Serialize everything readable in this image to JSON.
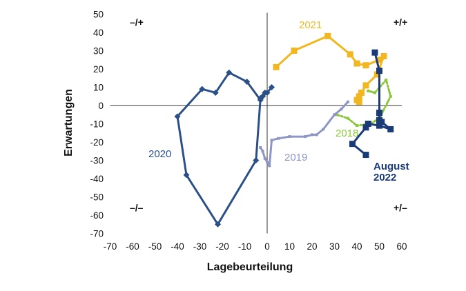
{
  "chart_data": {
    "type": "line",
    "xlabel": "Lagebeurteilung",
    "ylabel": "Erwartungen",
    "xlim": [
      -70,
      60
    ],
    "ylim": [
      -70,
      50
    ],
    "xticks": [
      -70,
      -60,
      -50,
      -40,
      -30,
      -20,
      -10,
      0,
      10,
      20,
      30,
      40,
      50,
      60
    ],
    "yticks": [
      -70,
      -60,
      -50,
      -40,
      -30,
      -20,
      -10,
      0,
      10,
      20,
      30,
      40,
      50
    ],
    "quadrants": {
      "top_left": "–/+",
      "top_right": "+/+",
      "bottom_left": "–/–",
      "bottom_right": "+/–"
    },
    "series": [
      {
        "name": "2018",
        "label": "2018",
        "color": "#8dc63f",
        "line_style": "dashdot",
        "points": [
          [
            45,
            8
          ],
          [
            48,
            7
          ],
          [
            53,
            14
          ],
          [
            55,
            5
          ],
          [
            50,
            -7
          ],
          [
            46,
            -10
          ],
          [
            40,
            -11
          ],
          [
            36,
            -7
          ],
          [
            31,
            -5
          ]
        ]
      },
      {
        "name": "2019",
        "label": "2019",
        "color": "#8e96c3",
        "line_style": "solid",
        "points": [
          [
            36,
            2
          ],
          [
            33,
            -2
          ],
          [
            30,
            -5
          ],
          [
            25,
            -13
          ],
          [
            22,
            -16
          ],
          [
            20,
            -16
          ],
          [
            17,
            -17
          ],
          [
            10,
            -17
          ],
          [
            5,
            -18
          ],
          [
            2,
            -19
          ],
          [
            1,
            -33
          ],
          [
            0,
            -31
          ],
          [
            -1,
            -29
          ],
          [
            -2,
            -25
          ],
          [
            -3,
            -23
          ]
        ]
      },
      {
        "name": "2020",
        "label": "2020",
        "color": "#2b4f87",
        "line_style": "solid",
        "points": [
          [
            2,
            10
          ],
          [
            0,
            7
          ],
          [
            -2,
            5
          ],
          [
            -3,
            3
          ],
          [
            -9,
            13
          ],
          [
            -17,
            18
          ],
          [
            -23,
            7
          ],
          [
            -29,
            9
          ],
          [
            -40,
            -6
          ],
          [
            -36,
            -38
          ],
          [
            -22,
            -65
          ],
          [
            -5,
            -30
          ],
          [
            -3,
            4
          ],
          [
            -1,
            7
          ]
        ]
      },
      {
        "name": "2021",
        "label": "2021",
        "color": "#f2b71e",
        "line_style": "solid",
        "points": [
          [
            4,
            21
          ],
          [
            12,
            30
          ],
          [
            27,
            38
          ],
          [
            37,
            28
          ],
          [
            40,
            23
          ],
          [
            44,
            22
          ],
          [
            50,
            25
          ],
          [
            52,
            27
          ],
          [
            49,
            17
          ],
          [
            44,
            11
          ],
          [
            42,
            7
          ],
          [
            41,
            5
          ],
          [
            40,
            3
          ],
          [
            41,
            2
          ]
        ]
      },
      {
        "name": "2022",
        "label": "August\n2022",
        "color": "#1a3a78",
        "line_style": "solid",
        "points": [
          [
            48,
            29
          ],
          [
            50,
            19
          ],
          [
            50,
            -4
          ],
          [
            50,
            -8
          ],
          [
            51,
            -9
          ],
          [
            55,
            -13
          ],
          [
            50,
            -11
          ],
          [
            45,
            -10
          ],
          [
            44,
            -12
          ],
          [
            38,
            -21
          ],
          [
            44,
            -27
          ]
        ]
      }
    ],
    "labels": [
      {
        "text": "2020",
        "series": "2020"
      },
      {
        "text": "2019",
        "series": "2019"
      },
      {
        "text": "2021",
        "series": "2021"
      },
      {
        "text": "2018",
        "series": "2018"
      },
      {
        "text": "August",
        "series": "2022"
      },
      {
        "text": "2022",
        "series": "2022"
      }
    ]
  }
}
